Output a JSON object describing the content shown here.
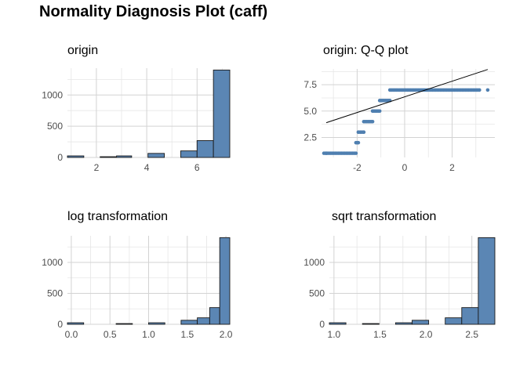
{
  "title": "Normality Diagnosis Plot (caff)",
  "colors": {
    "fill": "#5b86b4",
    "point": "#4f7fb0",
    "grid": "#d3d3d3",
    "axis_text": "#4d4d4d",
    "line": "#000000"
  },
  "chart_data": [
    {
      "id": "origin",
      "type": "bar",
      "title": "origin",
      "xlim": [
        0.85,
        7.3
      ],
      "ylim": [
        0,
        1430
      ],
      "xticks": [
        2,
        4,
        6
      ],
      "xtick_labels": [
        "2",
        "4",
        "6"
      ],
      "yticks": [
        0,
        500,
        1000
      ],
      "ytick_labels": [
        "0",
        "500",
        "1000"
      ],
      "grid": true,
      "bins": [
        {
          "x0": 0.85,
          "x1": 1.5,
          "count": 25
        },
        {
          "x0": 1.5,
          "x1": 2.15,
          "count": 0
        },
        {
          "x0": 2.15,
          "x1": 2.8,
          "count": 12
        },
        {
          "x0": 2.8,
          "x1": 3.4,
          "count": 25
        },
        {
          "x0": 3.4,
          "x1": 4.05,
          "count": 0
        },
        {
          "x0": 4.05,
          "x1": 4.7,
          "count": 65
        },
        {
          "x0": 4.7,
          "x1": 5.35,
          "count": 0
        },
        {
          "x0": 5.35,
          "x1": 6.0,
          "count": 105
        },
        {
          "x0": 6.0,
          "x1": 6.65,
          "count": 270
        },
        {
          "x0": 6.65,
          "x1": 7.3,
          "count": 1400
        }
      ]
    },
    {
      "id": "qq",
      "type": "scatter",
      "title": "origin: Q-Q plot",
      "xlim": [
        -3.5,
        3.8
      ],
      "ylim": [
        0.6,
        9.0
      ],
      "xticks": [
        -2,
        0,
        2
      ],
      "xtick_labels": [
        "-2",
        "0",
        "2"
      ],
      "yticks": [
        2.5,
        5.0,
        7.5
      ],
      "ytick_labels": [
        "2.5",
        "5.0",
        "7.5"
      ],
      "grid": true,
      "steps": [
        {
          "y": 1,
          "x0": -3.4,
          "x1": -2.05
        },
        {
          "y": 2,
          "x0": -2.05,
          "x1": -1.95
        },
        {
          "y": 3,
          "x0": -1.95,
          "x1": -1.72
        },
        {
          "y": 4,
          "x0": -1.72,
          "x1": -1.35
        },
        {
          "y": 5,
          "x0": -1.35,
          "x1": -1.05
        },
        {
          "y": 6,
          "x0": -1.05,
          "x1": -0.62
        },
        {
          "y": 7,
          "x0": -0.62,
          "x1": 3.15
        }
      ],
      "outliers": [
        {
          "x": -3.3,
          "y": 1
        },
        {
          "x": 3.5,
          "y": 7
        }
      ],
      "reference_line": {
        "x0": -3.3,
        "y0": 3.9,
        "x1": 3.5,
        "y1": 8.95
      }
    },
    {
      "id": "log",
      "type": "bar",
      "title": "log transformation",
      "xlim": [
        -0.05,
        2.05
      ],
      "ylim": [
        0,
        1430
      ],
      "xticks": [
        0.0,
        0.5,
        1.0,
        1.5,
        2.0
      ],
      "xtick_labels": [
        "0.0",
        "0.5",
        "1.0",
        "1.5",
        "2.0"
      ],
      "yticks": [
        0,
        500,
        1000
      ],
      "ytick_labels": [
        "0",
        "500",
        "1000"
      ],
      "grid": true,
      "bins": [
        {
          "x0": -0.05,
          "x1": 0.16,
          "count": 25
        },
        {
          "x0": 0.16,
          "x1": 0.37,
          "count": 0
        },
        {
          "x0": 0.37,
          "x1": 0.58,
          "count": 0
        },
        {
          "x0": 0.58,
          "x1": 0.79,
          "count": 12
        },
        {
          "x0": 0.79,
          "x1": 1.0,
          "count": 0
        },
        {
          "x0": 1.0,
          "x1": 1.21,
          "count": 25
        },
        {
          "x0": 1.21,
          "x1": 1.42,
          "count": 0
        },
        {
          "x0": 1.42,
          "x1": 1.63,
          "count": 65
        },
        {
          "x0": 1.63,
          "x1": 1.79,
          "count": 105
        },
        {
          "x0": 1.79,
          "x1": 1.92,
          "count": 270
        },
        {
          "x0": 1.92,
          "x1": 2.05,
          "count": 1400
        }
      ]
    },
    {
      "id": "sqrt",
      "type": "bar",
      "title": "sqrt transformation",
      "xlim": [
        0.95,
        2.75
      ],
      "ylim": [
        0,
        1430
      ],
      "xticks": [
        1.0,
        1.5,
        2.0,
        2.5
      ],
      "xtick_labels": [
        "1.0",
        "1.5",
        "2.0",
        "2.5"
      ],
      "yticks": [
        0,
        500,
        1000
      ],
      "ytick_labels": [
        "0",
        "500",
        "1000"
      ],
      "grid": true,
      "bins": [
        {
          "x0": 0.95,
          "x1": 1.13,
          "count": 25
        },
        {
          "x0": 1.13,
          "x1": 1.31,
          "count": 0
        },
        {
          "x0": 1.31,
          "x1": 1.49,
          "count": 12
        },
        {
          "x0": 1.49,
          "x1": 1.67,
          "count": 0
        },
        {
          "x0": 1.67,
          "x1": 1.85,
          "count": 25
        },
        {
          "x0": 1.85,
          "x1": 2.03,
          "count": 65
        },
        {
          "x0": 2.03,
          "x1": 2.21,
          "count": 0
        },
        {
          "x0": 2.21,
          "x1": 2.39,
          "count": 105
        },
        {
          "x0": 2.39,
          "x1": 2.57,
          "count": 270
        },
        {
          "x0": 2.57,
          "x1": 2.75,
          "count": 1400
        }
      ]
    }
  ]
}
